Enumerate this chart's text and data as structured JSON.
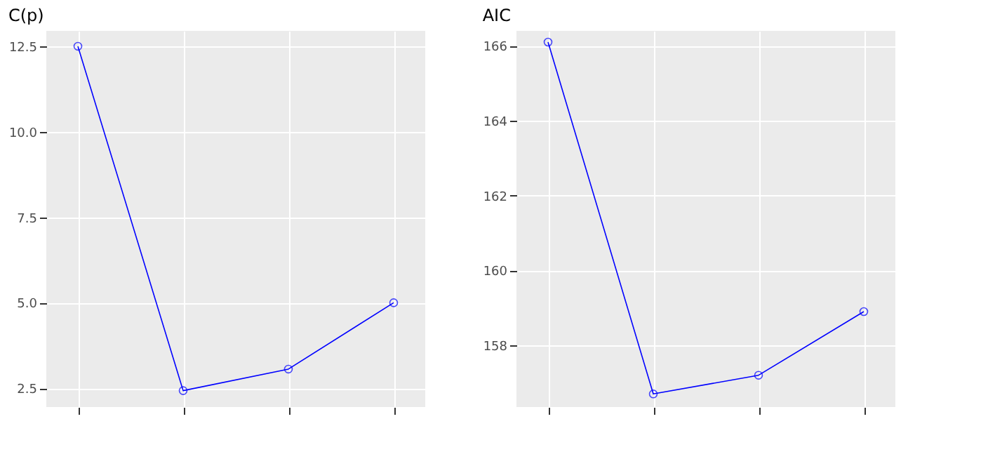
{
  "chart_data": [
    {
      "type": "line",
      "title": "C(p)",
      "categories": [
        null,
        null,
        null,
        null
      ],
      "series": [
        {
          "color": "#0000ff",
          "values": [
            12.5,
            2.43,
            3.06,
            5.0
          ]
        }
      ],
      "ylim": [
        1.95,
        12.95
      ],
      "yticks": [
        2.5,
        {
          "value": 5,
          "label": "5.0"
        },
        7.5,
        {
          "value": 10,
          "label": "10.0"
        },
        12.5
      ],
      "grid": true,
      "marker": "circle",
      "line_style": "solid",
      "tick_labels": "y"
    },
    {
      "type": "line",
      "title": "AIC",
      "categories": [
        null,
        null,
        null,
        null
      ],
      "series": [
        {
          "color": "#0000ff",
          "values": [
            166.1,
            156.7,
            157.2,
            158.9
          ]
        }
      ],
      "ylim": [
        156.35,
        166.4
      ],
      "yticks": [
        158,
        160,
        162,
        164,
        166
      ],
      "grid": true,
      "marker": "circle",
      "line_style": "solid",
      "tick_labels": "y"
    }
  ]
}
